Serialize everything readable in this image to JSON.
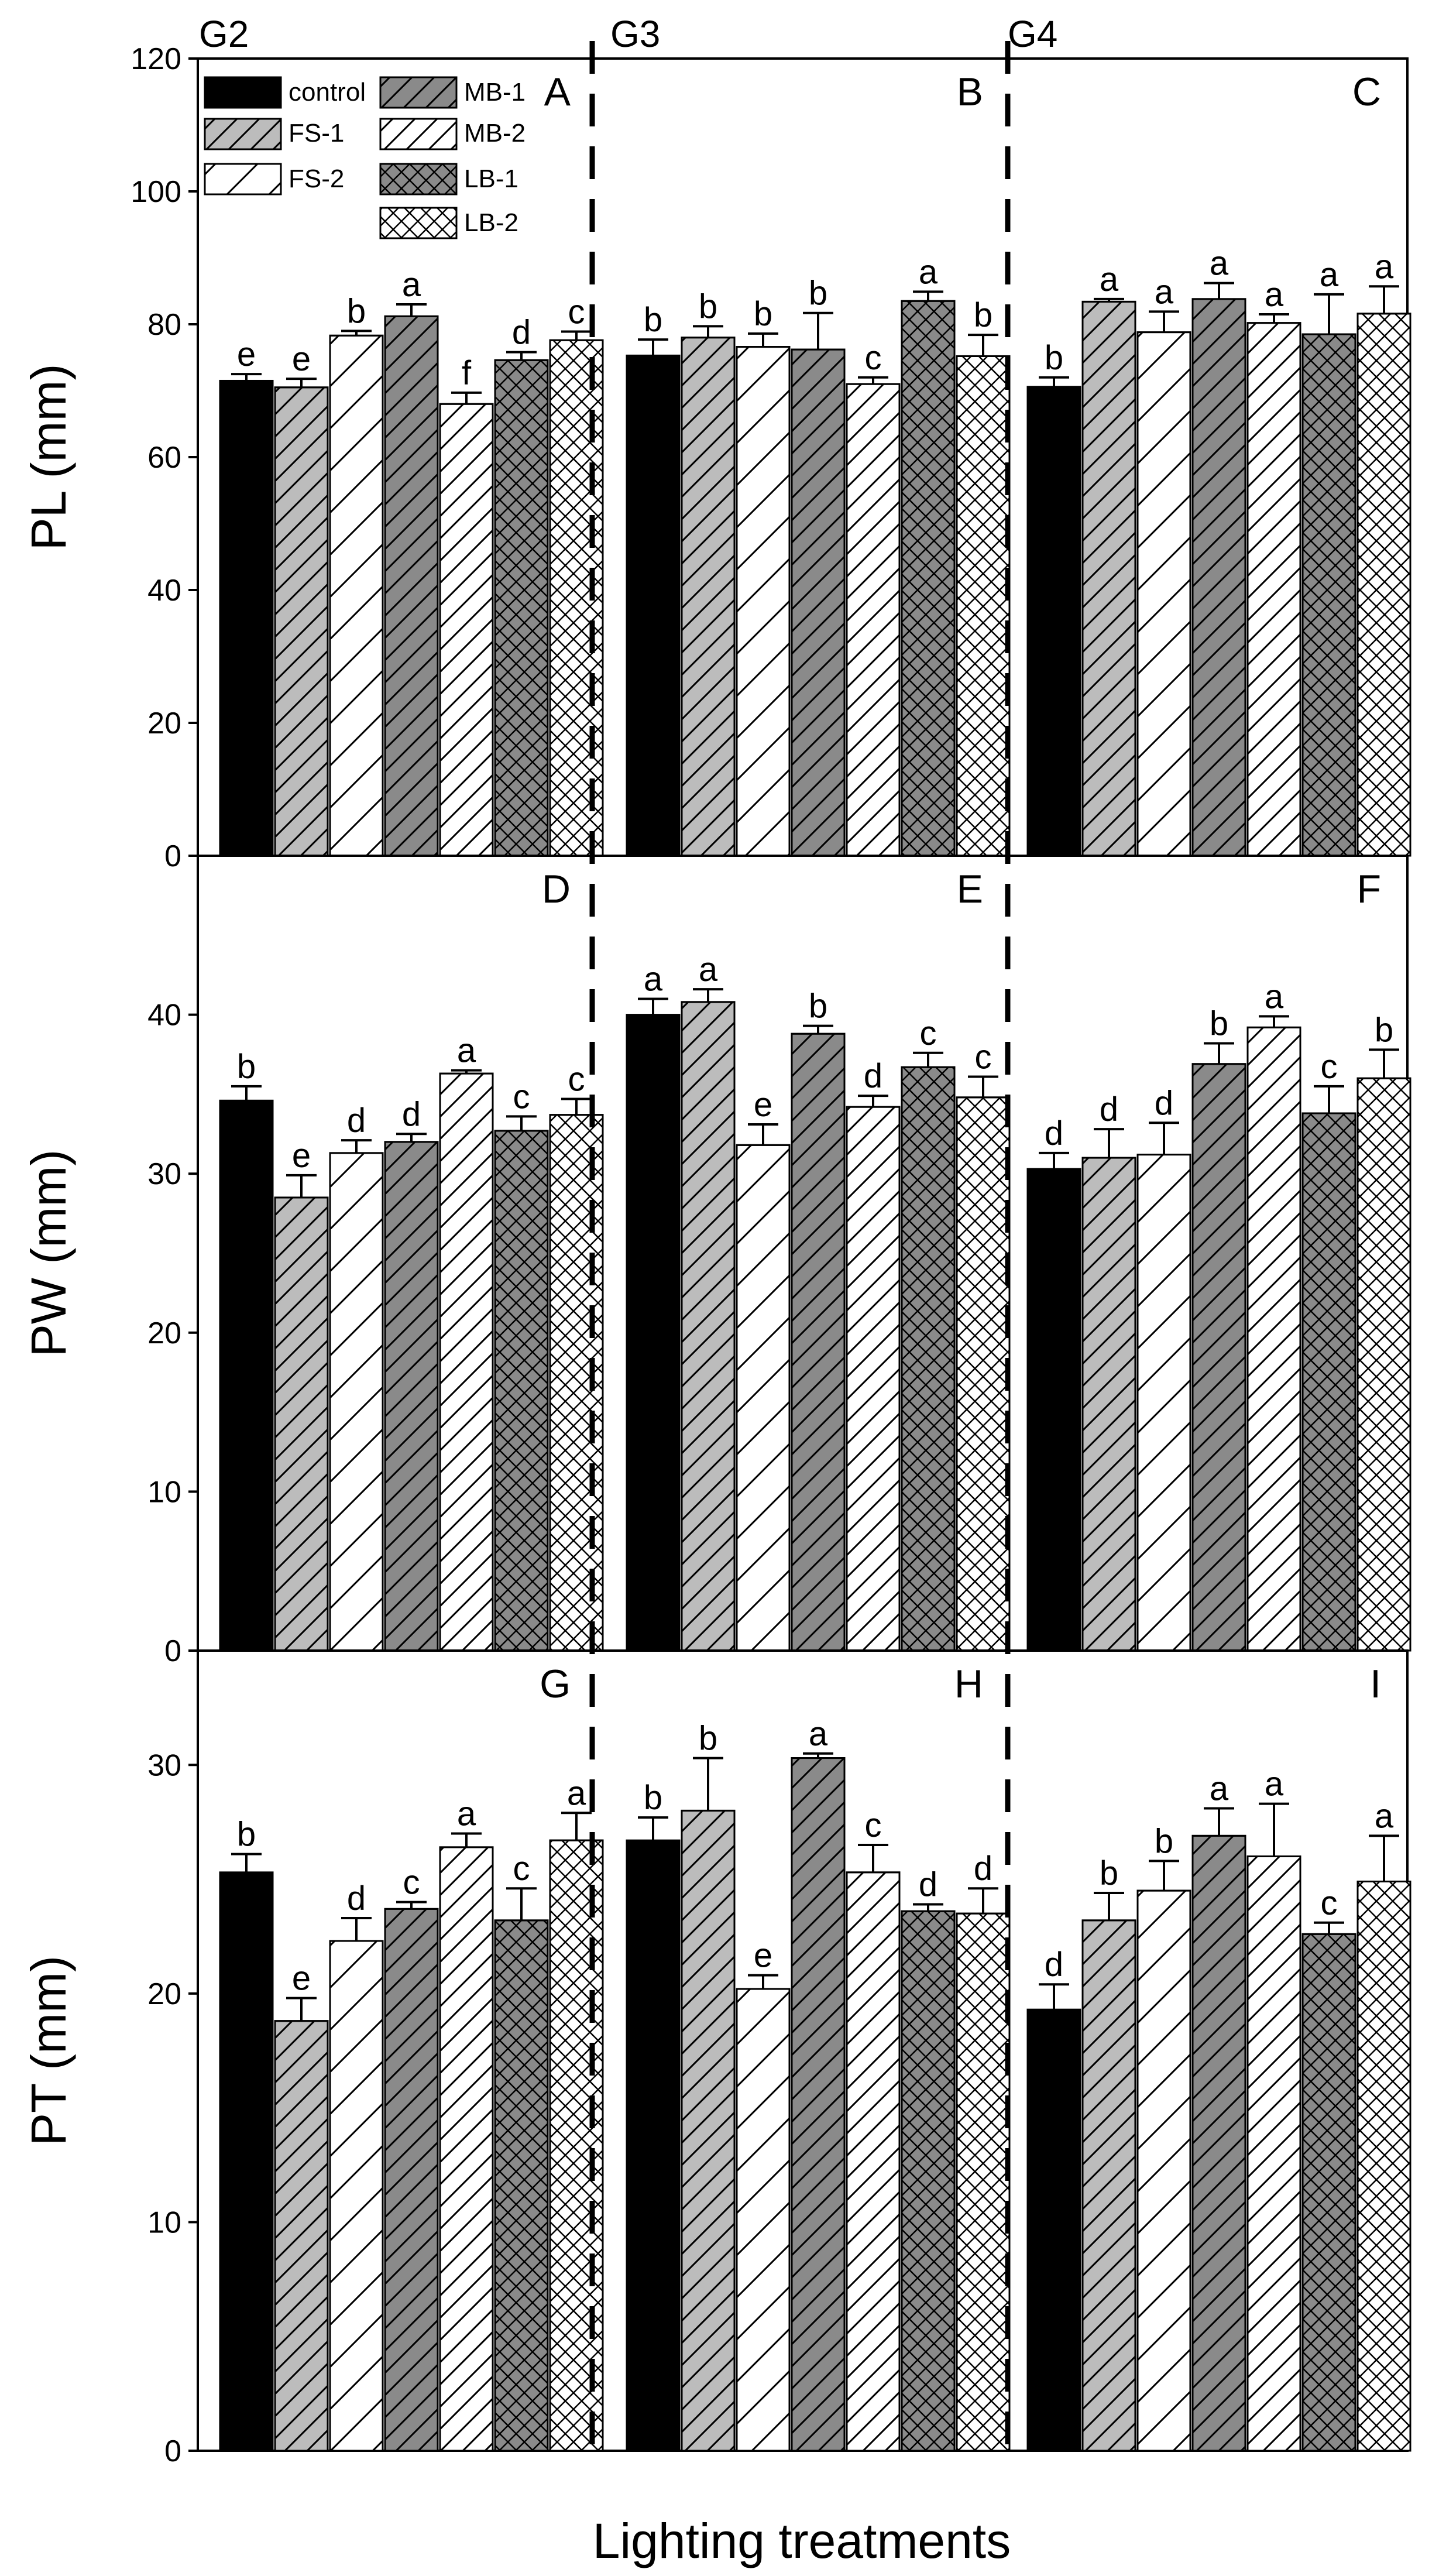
{
  "colors": {
    "control": "#000000",
    "gray": "#bcbcbc",
    "dark_gray": "#8a8a8a",
    "white": "#ffffff",
    "axis": "#000000"
  },
  "chart_data": {
    "type": "bar",
    "xlabel": "Lighting treatments",
    "group_labels": [
      "G2",
      "G3",
      "G4"
    ],
    "legend": [
      {
        "key": "control",
        "label": "control",
        "pattern": "solid-black"
      },
      {
        "key": "FS-1",
        "label": "FS-1",
        "pattern": "gray-hatch"
      },
      {
        "key": "FS-2",
        "label": "FS-2",
        "pattern": "white-hatch"
      },
      {
        "key": "MB-1",
        "label": "MB-1",
        "pattern": "darkgray-hatch"
      },
      {
        "key": "MB-2",
        "label": "MB-2",
        "pattern": "white-hatch"
      },
      {
        "key": "LB-1",
        "label": "LB-1",
        "pattern": "darkgray-crosshatch"
      },
      {
        "key": "LB-2",
        "label": "LB-2",
        "pattern": "white-crosshatch"
      }
    ],
    "rows": [
      {
        "ylabel": "PL (mm)",
        "ylim": [
          0,
          120
        ],
        "yticks": [
          0,
          20,
          40,
          60,
          80,
          100,
          120
        ],
        "panels": [
          {
            "label": "A",
            "values": [
              71.5,
              70.5,
              78.3,
              81.2,
              68.0,
              74.6,
              77.6
            ],
            "errors": [
              1.0,
              1.3,
              0.7,
              1.8,
              1.7,
              1.2,
              1.3
            ],
            "letters": [
              "e",
              "e",
              "b",
              "a",
              "f",
              "d",
              "c"
            ]
          },
          {
            "label": "B",
            "values": [
              75.3,
              78.0,
              76.6,
              76.2,
              71.0,
              83.5,
              75.2
            ],
            "errors": [
              2.4,
              1.7,
              2.0,
              5.5,
              1.0,
              1.4,
              3.2
            ],
            "letters": [
              "b",
              "b",
              "b",
              "b",
              "c",
              "a",
              "b"
            ]
          },
          {
            "label": "C",
            "values": [
              70.6,
              83.4,
              78.8,
              83.8,
              80.2,
              78.5,
              81.6
            ],
            "errors": [
              1.4,
              0.4,
              3.1,
              2.4,
              1.3,
              6.0,
              4.1
            ],
            "letters": [
              "b",
              "a",
              "a",
              "a",
              "a",
              "a",
              "a"
            ]
          }
        ]
      },
      {
        "ylabel": "PW (mm)",
        "ylim": [
          0,
          50
        ],
        "yticks": [
          0,
          10,
          20,
          30,
          40
        ],
        "panels": [
          {
            "label": "D",
            "values": [
              34.6,
              28.5,
              31.3,
              32.0,
              36.3,
              32.7,
              33.7
            ],
            "errors": [
              0.9,
              1.4,
              0.8,
              0.5,
              0.2,
              0.9,
              1.0
            ],
            "letters": [
              "b",
              "e",
              "d",
              "d",
              "a",
              "c",
              "c"
            ]
          },
          {
            "label": "E",
            "values": [
              40.0,
              40.8,
              31.8,
              38.8,
              34.2,
              36.7,
              34.8
            ],
            "errors": [
              1.0,
              0.8,
              1.3,
              0.5,
              0.7,
              0.9,
              1.3
            ],
            "letters": [
              "a",
              "a",
              "e",
              "b",
              "d",
              "c",
              "c"
            ]
          },
          {
            "label": "F",
            "values": [
              30.3,
              31.0,
              31.2,
              36.9,
              39.2,
              33.8,
              36.0
            ],
            "errors": [
              1.0,
              1.8,
              2.0,
              1.3,
              0.7,
              1.7,
              1.8
            ],
            "letters": [
              "d",
              "d",
              "d",
              "b",
              "a",
              "c",
              "b"
            ]
          }
        ]
      },
      {
        "ylabel": "PT (mm)",
        "ylim": [
          0,
          35
        ],
        "yticks": [
          0,
          10,
          20,
          30
        ],
        "panels": [
          {
            "label": "G",
            "values": [
              25.3,
              18.8,
              22.3,
              23.7,
              26.4,
              23.2,
              26.7
            ],
            "errors": [
              0.8,
              1.0,
              1.0,
              0.3,
              0.6,
              1.4,
              1.2
            ],
            "letters": [
              "b",
              "e",
              "d",
              "c",
              "a",
              "c",
              "a"
            ]
          },
          {
            "label": "H",
            "values": [
              26.7,
              28.0,
              20.2,
              30.3,
              25.3,
              23.6,
              23.5
            ],
            "errors": [
              1.0,
              2.3,
              0.6,
              0.2,
              1.2,
              0.3,
              1.1
            ],
            "letters": [
              "b",
              "b",
              "e",
              "a",
              "c",
              "d",
              "d"
            ]
          },
          {
            "label": "I",
            "values": [
              19.3,
              23.2,
              24.5,
              26.9,
              26.0,
              22.6,
              24.9
            ],
            "errors": [
              1.1,
              1.2,
              1.3,
              1.2,
              2.3,
              0.5,
              2.0
            ],
            "letters": [
              "d",
              "b",
              "b",
              "a",
              "a",
              "c",
              "a"
            ]
          }
        ]
      }
    ]
  }
}
